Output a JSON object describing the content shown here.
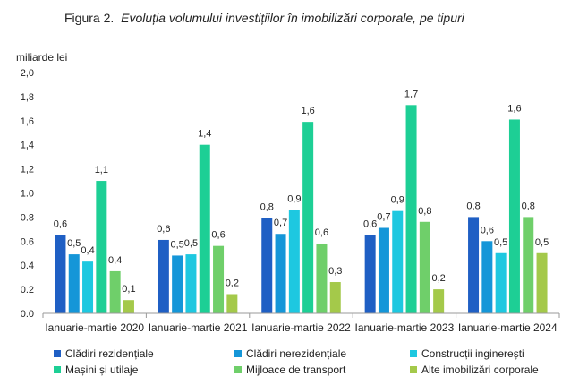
{
  "title_prefix": "Figura 2.",
  "title_main": "Evoluția volumului investițiilor în imobilizări corporale, pe tipuri",
  "chart_data": {
    "type": "bar",
    "ylabel": "miliarde lei",
    "ylim": [
      0,
      2.0
    ],
    "yticks": [
      "0.0",
      "0.2",
      "0.4",
      "0.6",
      "0.8",
      "1.0",
      "1,2",
      "1,4",
      "1,6",
      "1,8",
      "2,0"
    ],
    "categories": [
      "Ianuarie-martie 2020",
      "Ianuarie-martie 2021",
      "Ianuarie-martie 2022",
      "Ianuarie-martie 2023",
      "Ianuarie-martie 2024"
    ],
    "series": [
      {
        "name": "Clădiri rezidențiale",
        "color": "#1f5fc4",
        "values": [
          0.65,
          0.61,
          0.79,
          0.65,
          0.8
        ],
        "labels": [
          "0,6",
          "0,6",
          "0,8",
          "0,6",
          "0,8"
        ]
      },
      {
        "name": "Clădiri nerezidențiale",
        "color": "#1596d8",
        "values": [
          0.49,
          0.48,
          0.66,
          0.71,
          0.6
        ],
        "labels": [
          "0,5",
          "0,5",
          "0,7",
          "0,7",
          "0,6"
        ]
      },
      {
        "name": "Construcții inginerești",
        "color": "#1ec8e0",
        "values": [
          0.43,
          0.49,
          0.86,
          0.85,
          0.5
        ],
        "labels": [
          "0,4",
          "0,5",
          "0,9",
          "0,9",
          "0,5"
        ]
      },
      {
        "name": "Mașini și utilaje",
        "color": "#1dcf95",
        "values": [
          1.1,
          1.4,
          1.59,
          1.73,
          1.61
        ],
        "labels": [
          "1,1",
          "1,4",
          "1,6",
          "1,7",
          "1,6"
        ]
      },
      {
        "name": "Mijloace de transport",
        "color": "#6fcf6a",
        "values": [
          0.35,
          0.56,
          0.58,
          0.76,
          0.8
        ],
        "labels": [
          "0,4",
          "0,6",
          "0,6",
          "0,8",
          "0,8"
        ]
      },
      {
        "name": "Alte imobilizări corporale",
        "color": "#a4c94a",
        "values": [
          0.11,
          0.16,
          0.26,
          0.2,
          0.5
        ],
        "labels": [
          "0,1",
          "0,2",
          "0,3",
          "0,2",
          "0,5"
        ]
      }
    ],
    "legend_position": "bottom",
    "grid": false
  }
}
